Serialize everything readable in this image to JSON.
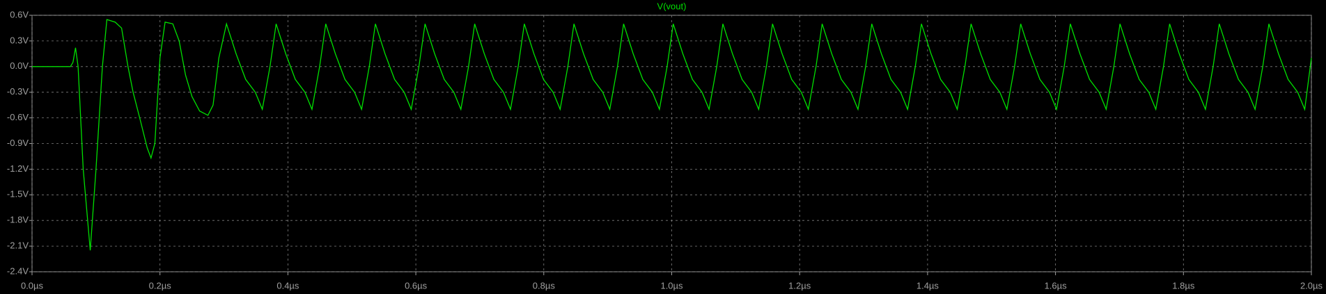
{
  "chart_data": {
    "type": "line",
    "series": [
      {
        "name": "V(vout)",
        "color": "#00e000",
        "values": [
          0,
          0,
          0.05,
          0.22,
          0.0,
          -1.2,
          -2.15,
          -1.2,
          0.0,
          0.55,
          0.52,
          0.45,
          0.0,
          -0.3,
          -0.65,
          -0.95,
          -1.07,
          -0.9,
          0.1,
          0.52,
          0.5,
          0.3,
          -0.1,
          -0.35,
          -0.52,
          -0.57,
          -0.45,
          0.1,
          0.5,
          0.15,
          -0.15,
          -0.3,
          -0.5,
          0.0,
          0.5,
          0.15,
          -0.15,
          -0.3,
          -0.5,
          0.0,
          0.5,
          0.15,
          -0.15,
          -0.3,
          -0.5,
          0.0,
          0.5,
          0.15,
          -0.15,
          -0.3,
          -0.5,
          0.0,
          0.5,
          0.15,
          -0.15,
          -0.3,
          -0.5,
          0.0,
          0.5,
          0.15,
          -0.15,
          -0.3,
          -0.5,
          0.0,
          0.5,
          0.15,
          -0.15,
          -0.3,
          -0.5,
          0.0,
          0.5,
          0.15,
          -0.15,
          -0.3,
          -0.5,
          0.0,
          0.5,
          0.15,
          -0.15,
          -0.3,
          -0.5,
          0.0,
          0.5,
          0.15,
          -0.15,
          -0.3,
          -0.5,
          0.0,
          0.5,
          0.15,
          -0.15,
          -0.3,
          -0.5,
          0.0,
          0.5,
          0.15,
          -0.15,
          -0.3,
          -0.5,
          0.0,
          0.5,
          0.15,
          -0.15,
          -0.3,
          -0.5,
          0.0,
          0.5,
          0.15,
          -0.15,
          -0.3,
          -0.5,
          0.0,
          0.5,
          0.15,
          -0.15,
          -0.3,
          -0.5,
          0.0,
          0.5,
          0.15,
          -0.15,
          -0.3,
          -0.5,
          0.0,
          0.5,
          0.15,
          -0.15,
          -0.3,
          -0.5,
          0.0,
          0.5,
          0.15,
          -0.15,
          -0.3,
          -0.5,
          0.0,
          0.5,
          0.15,
          -0.15,
          -0.3,
          -0.5,
          0.0,
          0.5,
          0.15,
          -0.15,
          -0.3,
          -0.5,
          0.0,
          0.5,
          0.15,
          -0.15,
          -0.3,
          -0.5,
          0.0,
          0.5,
          0.15,
          -0.15,
          -0.3,
          -0.5,
          0.1
        ]
      }
    ],
    "x": [
      0,
      0.06,
      0.064,
      0.068,
      0.072,
      0.08,
      0.091,
      0.1,
      0.11,
      0.117,
      0.13,
      0.14,
      0.15,
      0.158,
      0.17,
      0.18,
      0.186,
      0.192,
      0.2,
      0.208,
      0.22,
      0.23,
      0.24,
      0.25,
      0.262,
      0.275,
      0.283,
      0.292,
      0.304,
      0.319,
      0.334,
      0.349,
      0.36,
      0.372,
      0.3816,
      0.3966,
      0.4116,
      0.4266,
      0.4376,
      0.4496,
      0.4592,
      0.4742,
      0.4892,
      0.5042,
      0.5152,
      0.5272,
      0.5368,
      0.5518,
      0.5668,
      0.5818,
      0.5928,
      0.6048,
      0.6144,
      0.6294,
      0.6444,
      0.6594,
      0.6704,
      0.6824,
      0.692,
      0.707,
      0.722,
      0.737,
      0.748,
      0.76,
      0.7696,
      0.7846,
      0.7996,
      0.8146,
      0.8256,
      0.8376,
      0.8472,
      0.8622,
      0.8772,
      0.8922,
      0.9032,
      0.9152,
      0.9248,
      0.9398,
      0.9548,
      0.9698,
      0.9808,
      0.9928,
      1.0024,
      1.0174,
      1.0324,
      1.0474,
      1.0584,
      1.0704,
      1.08,
      1.095,
      1.11,
      1.125,
      1.136,
      1.148,
      1.1576,
      1.1726,
      1.1876,
      1.2026,
      1.2136,
      1.2256,
      1.2352,
      1.2502,
      1.2652,
      1.2802,
      1.2912,
      1.3032,
      1.3128,
      1.3278,
      1.3428,
      1.3578,
      1.3688,
      1.3808,
      1.3904,
      1.4054,
      1.4204,
      1.4354,
      1.4464,
      1.4584,
      1.468,
      1.483,
      1.498,
      1.513,
      1.524,
      1.536,
      1.5456,
      1.5606,
      1.5756,
      1.5906,
      1.6016,
      1.6136,
      1.6232,
      1.6382,
      1.6532,
      1.6682,
      1.6792,
      1.6912,
      1.7008,
      1.7158,
      1.7308,
      1.7458,
      1.7568,
      1.7688,
      1.7784,
      1.7934,
      1.8084,
      1.8234,
      1.8344,
      1.8464,
      1.856,
      1.871,
      1.886,
      1.901,
      1.912,
      1.924,
      1.9336,
      1.9486,
      1.9636,
      1.9786,
      1.9896,
      2.0
    ],
    "xlim": [
      0,
      2.0
    ],
    "xticks": [
      {
        "value": 0,
        "label": "0.0µs"
      },
      {
        "value": 0.2,
        "label": "0.2µs"
      },
      {
        "value": 0.4,
        "label": "0.4µs"
      },
      {
        "value": 0.6,
        "label": "0.6µs"
      },
      {
        "value": 0.8,
        "label": "0.8µs"
      },
      {
        "value": 1.0,
        "label": "1.0µs"
      },
      {
        "value": 1.2,
        "label": "1.2µs"
      },
      {
        "value": 1.4,
        "label": "1.4µs"
      },
      {
        "value": 1.6,
        "label": "1.6µs"
      },
      {
        "value": 1.8,
        "label": "1.8µs"
      },
      {
        "value": 2.0,
        "label": "2.0µs"
      }
    ],
    "ylim": [
      -2.4,
      0.6
    ],
    "yticks": [
      {
        "value": 0.6,
        "label": "0.6V"
      },
      {
        "value": 0.3,
        "label": "0.3V"
      },
      {
        "value": 0,
        "label": "0.0V"
      },
      {
        "value": -0.3,
        "label": "-0.3V"
      },
      {
        "value": -0.6,
        "label": "-0.6V"
      },
      {
        "value": -0.9,
        "label": "-0.9V"
      },
      {
        "value": -1.2,
        "label": "-1.2V"
      },
      {
        "value": -1.5,
        "label": "-1.5V"
      },
      {
        "value": -1.8,
        "label": "-1.8V"
      },
      {
        "value": -2.1,
        "label": "-2.1V"
      },
      {
        "value": -2.4,
        "label": "-2.4V"
      }
    ],
    "grid": true
  }
}
